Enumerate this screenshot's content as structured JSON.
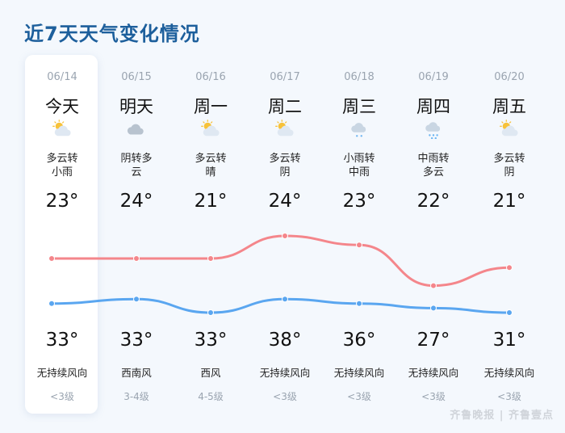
{
  "header": {
    "title": "近7天天气变化情况"
  },
  "days": [
    {
      "date": "06/14",
      "day": "今天",
      "icon": "partly-cloudy-icon",
      "desc": "多云转\n小雨",
      "low": "23°",
      "high": "33°",
      "wind": "无持续风向",
      "level": "<3级",
      "low_val": 23,
      "high_val": 33
    },
    {
      "date": "06/15",
      "day": "明天",
      "icon": "overcast-icon",
      "desc": "阴转多\n云",
      "low": "24°",
      "high": "33°",
      "wind": "西南风",
      "level": "3-4级",
      "low_val": 24,
      "high_val": 33
    },
    {
      "date": "06/16",
      "day": "周一",
      "icon": "partly-cloudy-icon",
      "desc": "多云转\n晴",
      "low": "21°",
      "high": "33°",
      "wind": "西风",
      "level": "4-5级",
      "low_val": 21,
      "high_val": 33
    },
    {
      "date": "06/17",
      "day": "周二",
      "icon": "partly-cloudy-icon",
      "desc": "多云转\n阴",
      "low": "24°",
      "high": "38°",
      "wind": "无持续风向",
      "level": "<3级",
      "low_val": 24,
      "high_val": 38
    },
    {
      "date": "06/18",
      "day": "周三",
      "icon": "light-rain-icon",
      "desc": "小雨转\n中雨",
      "low": "23°",
      "high": "36°",
      "wind": "无持续风向",
      "level": "<3级",
      "low_val": 23,
      "high_val": 36
    },
    {
      "date": "06/19",
      "day": "周四",
      "icon": "moderate-rain-icon",
      "desc": "中雨转\n多云",
      "low": "22°",
      "high": "27°",
      "wind": "无持续风向",
      "level": "<3级",
      "low_val": 22,
      "high_val": 27
    },
    {
      "date": "06/20",
      "day": "周五",
      "icon": "partly-cloudy-icon",
      "desc": "多云转\n阴",
      "low": "21°",
      "high": "31°",
      "wind": "无持续风向",
      "level": "<3级",
      "low_val": 21,
      "high_val": 31
    }
  ],
  "colors": {
    "upper_line": "#f4868b",
    "lower_line": "#5aa6f0",
    "title": "#1d5f9c"
  },
  "watermark": "齐鲁晚报 | 齐鲁壹点"
}
